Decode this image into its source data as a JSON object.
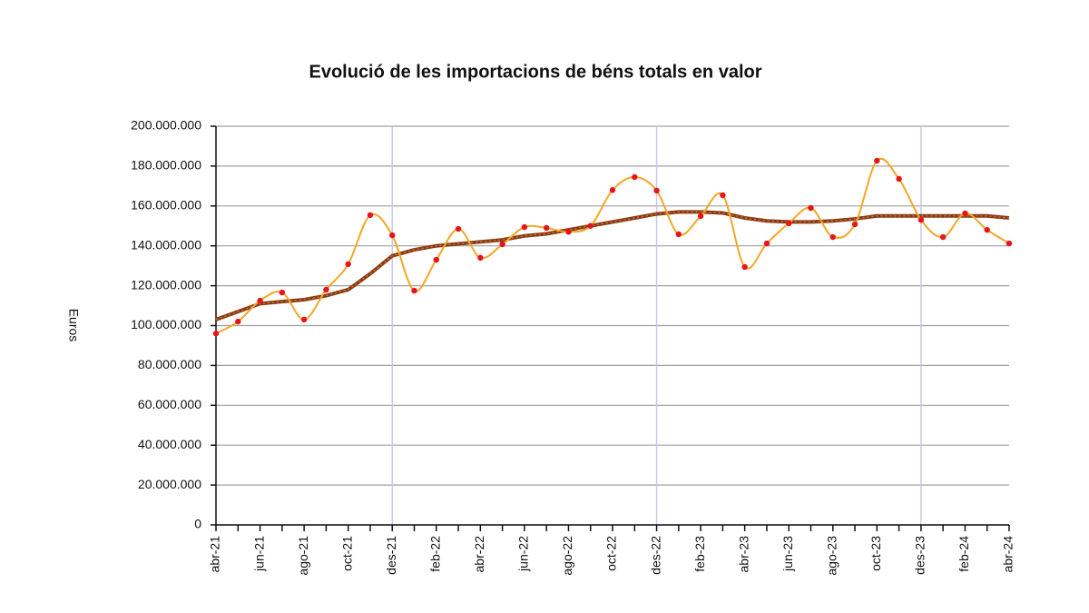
{
  "chart_data": {
    "type": "line",
    "title": "Evolució de les importacions de béns totals en valor",
    "y_label": "Euros",
    "categories": [
      "abr-21",
      null,
      "jun-21",
      null,
      "ago-21",
      null,
      "oct-21",
      null,
      "des-21",
      null,
      "feb-22",
      null,
      "abr-22",
      null,
      "jun-22",
      null,
      "ago-22",
      null,
      "oct-22",
      null,
      "des-22",
      null,
      "feb-23",
      null,
      "abr-23",
      null,
      "jun-23",
      null,
      "ago-23",
      null,
      "oct-23",
      null,
      "des-23",
      null,
      "feb-24",
      null,
      "abr-24"
    ],
    "series": [
      {
        "color": "#f5a623",
        "marker_color": "#e8141b",
        "smooth": true,
        "values": [
          96000000,
          102000000,
          112500000,
          116600000,
          103000000,
          118000000,
          130800000,
          155400000,
          145300000,
          117500000,
          133000000,
          148500000,
          134000000,
          140800000,
          149400000,
          149000000,
          147000000,
          150000000,
          168000000,
          174500000,
          167700000,
          145800000,
          154900000,
          165400000,
          129400000,
          141200000,
          151300000,
          159000000,
          144400000,
          150800000,
          182700000,
          173600000,
          153000000,
          144400000,
          156300000,
          148000000,
          141200000
        ]
      },
      {
        "color": "#8b3a12",
        "smooth": false,
        "values": [
          103000000,
          107000000,
          111000000,
          112000000,
          113000000,
          115000000,
          118000000,
          126000000,
          135000000,
          138000000,
          140000000,
          141000000,
          142000000,
          143000000,
          145000000,
          146000000,
          148000000,
          150000000,
          152000000,
          154000000,
          156000000,
          157000000,
          157000000,
          156500000,
          154000000,
          152500000,
          152000000,
          152000000,
          152500000,
          153500000,
          155000000,
          155000000,
          155000000,
          155000000,
          155000000,
          155000000,
          154000000
        ]
      }
    ],
    "ylim": [
      0,
      200000000
    ],
    "yticks": [
      0,
      {
        "value": 20000000,
        "label": "20.000.000"
      },
      {
        "value": 40000000,
        "label": "40.000.000"
      },
      {
        "value": 60000000,
        "label": "60.000.000"
      },
      {
        "value": 80000000,
        "label": "80.000.000"
      },
      {
        "value": 100000000,
        "label": "100.000.000"
      },
      {
        "value": 120000000,
        "label": "120.000.000"
      },
      {
        "value": 140000000,
        "label": "140.000.000"
      },
      {
        "value": 160000000,
        "label": "160.000.000"
      },
      {
        "value": 180000000,
        "label": "180.000.000"
      },
      {
        "value": 200000000,
        "label": "200.000.000"
      }
    ],
    "grid": true,
    "year_separators": [
      8,
      20,
      32
    ],
    "separator_color": "#c8c8f0"
  }
}
